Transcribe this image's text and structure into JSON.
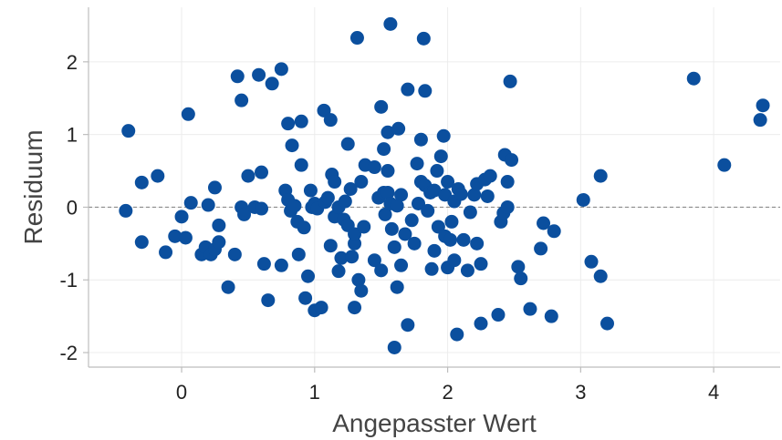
{
  "chart_data": {
    "type": "scatter",
    "title": "",
    "xlabel": "Angepasster Wert",
    "ylabel": "Residuum",
    "xlim": [
      -0.7,
      4.5
    ],
    "ylim": [
      -2.2,
      2.75
    ],
    "xticks": [
      0,
      1,
      2,
      3,
      4
    ],
    "xtick_labels": [
      "0",
      "1",
      "2",
      "3",
      "4"
    ],
    "yticks": [
      -2,
      -1,
      0,
      1,
      2
    ],
    "ytick_labels": [
      "-2",
      "-1",
      "0",
      "1",
      "2"
    ],
    "grid": true,
    "reference_line_y": 0,
    "colors": {
      "point": "#0b4f9e",
      "grid": "#ececec",
      "axis": "#bdbdbd",
      "reference": "#8c8c8c"
    },
    "points": [
      [
        -0.4,
        1.05
      ],
      [
        -0.42,
        -0.05
      ],
      [
        -0.3,
        -0.48
      ],
      [
        -0.3,
        0.34
      ],
      [
        -0.18,
        0.43
      ],
      [
        -0.12,
        -0.62
      ],
      [
        -0.05,
        -0.4
      ],
      [
        0,
        -0.13
      ],
      [
        0.03,
        -0.42
      ],
      [
        0.05,
        1.28
      ],
      [
        0.07,
        0.06
      ],
      [
        0.15,
        -0.65
      ],
      [
        0.18,
        -0.55
      ],
      [
        0.2,
        0.03
      ],
      [
        0.22,
        -0.65
      ],
      [
        0.25,
        0.27
      ],
      [
        0.25,
        -0.58
      ],
      [
        0.28,
        -0.25
      ],
      [
        0.28,
        -0.48
      ],
      [
        0.35,
        -1.1
      ],
      [
        0.4,
        -0.65
      ],
      [
        0.42,
        1.8
      ],
      [
        0.45,
        1.47
      ],
      [
        0.45,
        0.0
      ],
      [
        0.47,
        -0.1
      ],
      [
        0.5,
        0.43
      ],
      [
        0.55,
        0.0
      ],
      [
        0.58,
        1.82
      ],
      [
        0.6,
        0.48
      ],
      [
        0.6,
        -0.02
      ],
      [
        0.62,
        -0.78
      ],
      [
        0.65,
        -1.28
      ],
      [
        0.68,
        1.7
      ],
      [
        0.75,
        1.9
      ],
      [
        0.75,
        -0.8
      ],
      [
        0.78,
        0.23
      ],
      [
        0.8,
        1.15
      ],
      [
        0.8,
        0.1
      ],
      [
        0.82,
        -0.05
      ],
      [
        0.83,
        0.85
      ],
      [
        0.85,
        0.02
      ],
      [
        0.87,
        -0.2
      ],
      [
        0.88,
        -0.65
      ],
      [
        0.9,
        1.18
      ],
      [
        0.9,
        0.58
      ],
      [
        0.92,
        -0.28
      ],
      [
        0.93,
        -1.25
      ],
      [
        0.95,
        -0.95
      ],
      [
        0.97,
        0.23
      ],
      [
        0.98,
        0.0
      ],
      [
        1.0,
        -1.42
      ],
      [
        1.0,
        0.05
      ],
      [
        1.02,
        -0.02
      ],
      [
        1.05,
        -1.38
      ],
      [
        1.07,
        1.33
      ],
      [
        1.08,
        0.07
      ],
      [
        1.1,
        0.13
      ],
      [
        1.12,
        1.2
      ],
      [
        1.12,
        -0.53
      ],
      [
        1.13,
        0.45
      ],
      [
        1.15,
        0.35
      ],
      [
        1.15,
        -0.13
      ],
      [
        1.18,
        -0.88
      ],
      [
        1.18,
        0.0
      ],
      [
        1.2,
        -0.7
      ],
      [
        1.22,
        -0.17
      ],
      [
        1.23,
        0.08
      ],
      [
        1.25,
        -0.25
      ],
      [
        1.25,
        0.87
      ],
      [
        1.27,
        0.25
      ],
      [
        1.28,
        -0.68
      ],
      [
        1.3,
        -0.5
      ],
      [
        1.3,
        -0.37
      ],
      [
        1.3,
        -1.38
      ],
      [
        1.32,
        2.33
      ],
      [
        1.33,
        -1.0
      ],
      [
        1.35,
        -1.15
      ],
      [
        1.35,
        0.35
      ],
      [
        1.37,
        -0.27
      ],
      [
        1.38,
        0.58
      ],
      [
        1.45,
        -0.73
      ],
      [
        1.45,
        0.55
      ],
      [
        1.48,
        0.13
      ],
      [
        1.5,
        1.38
      ],
      [
        1.5,
        -0.87
      ],
      [
        1.52,
        0.2
      ],
      [
        1.52,
        0.8
      ],
      [
        1.53,
        -0.1
      ],
      [
        1.55,
        1.03
      ],
      [
        1.55,
        0.5
      ],
      [
        1.55,
        0.2
      ],
      [
        1.57,
        2.52
      ],
      [
        1.57,
        0.05
      ],
      [
        1.58,
        -0.3
      ],
      [
        1.6,
        -1.93
      ],
      [
        1.6,
        -0.55
      ],
      [
        1.62,
        0.02
      ],
      [
        1.62,
        -1.1
      ],
      [
        1.63,
        1.08
      ],
      [
        1.65,
        -0.8
      ],
      [
        1.65,
        0.17
      ],
      [
        1.68,
        -0.37
      ],
      [
        1.7,
        1.62
      ],
      [
        1.7,
        -1.62
      ],
      [
        1.73,
        -0.18
      ],
      [
        1.75,
        -0.5
      ],
      [
        1.77,
        0.6
      ],
      [
        1.78,
        0.05
      ],
      [
        1.8,
        0.93
      ],
      [
        1.8,
        0.35
      ],
      [
        1.82,
        2.32
      ],
      [
        1.83,
        1.6
      ],
      [
        1.83,
        0.3
      ],
      [
        1.85,
        -0.05
      ],
      [
        1.87,
        0.2
      ],
      [
        1.88,
        -0.85
      ],
      [
        1.9,
        -0.6
      ],
      [
        1.9,
        0.23
      ],
      [
        1.92,
        0.5
      ],
      [
        1.93,
        -0.27
      ],
      [
        1.95,
        0.7
      ],
      [
        1.97,
        0.98
      ],
      [
        1.98,
        0.17
      ],
      [
        1.98,
        -0.4
      ],
      [
        2.0,
        0.35
      ],
      [
        2.0,
        -0.83
      ],
      [
        2.02,
        -0.45
      ],
      [
        2.03,
        -0.2
      ],
      [
        2.05,
        0.08
      ],
      [
        2.05,
        -0.73
      ],
      [
        2.07,
        -1.75
      ],
      [
        2.08,
        0.25
      ],
      [
        2.1,
        0.18
      ],
      [
        2.12,
        -0.45
      ],
      [
        2.15,
        -0.87
      ],
      [
        2.17,
        -0.07
      ],
      [
        2.2,
        0.17
      ],
      [
        2.22,
        -0.5
      ],
      [
        2.22,
        0.32
      ],
      [
        2.25,
        -0.78
      ],
      [
        2.25,
        -1.6
      ],
      [
        2.28,
        0.38
      ],
      [
        2.3,
        0.15
      ],
      [
        2.32,
        0.43
      ],
      [
        2.38,
        -1.48
      ],
      [
        2.4,
        -0.2
      ],
      [
        2.42,
        -0.08
      ],
      [
        2.43,
        0.72
      ],
      [
        2.45,
        0.0
      ],
      [
        2.45,
        0.35
      ],
      [
        2.47,
        1.73
      ],
      [
        2.48,
        0.65
      ],
      [
        2.53,
        -0.82
      ],
      [
        2.55,
        -0.98
      ],
      [
        2.62,
        -1.4
      ],
      [
        2.7,
        -0.57
      ],
      [
        2.72,
        -0.22
      ],
      [
        2.78,
        -1.5
      ],
      [
        2.8,
        -0.33
      ],
      [
        3.02,
        0.1
      ],
      [
        3.08,
        -0.75
      ],
      [
        3.15,
        -0.95
      ],
      [
        3.15,
        0.43
      ],
      [
        3.2,
        -1.6
      ],
      [
        3.85,
        1.77
      ],
      [
        4.08,
        0.58
      ],
      [
        4.35,
        1.2
      ],
      [
        4.37,
        1.4
      ]
    ]
  }
}
